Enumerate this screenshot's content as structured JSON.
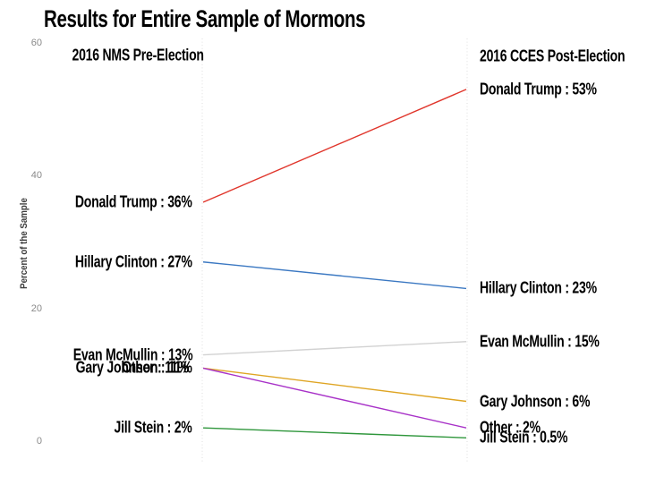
{
  "title": "Results for Entire Sample of Mormons",
  "y_axis": {
    "label": "Percent of the Sample",
    "ticks": [
      "60",
      "40",
      "20",
      "0"
    ],
    "tick_values": [
      60,
      40,
      20,
      0
    ]
  },
  "columns": {
    "left_header": "2016 NMS Pre-Election",
    "right_header": "2016 CCES Post-Election"
  },
  "colors": {
    "axis_dotted_line": "#dedede",
    "tick_text": "#8a8a8a"
  },
  "chart_data": {
    "type": "line",
    "subtype": "slopegraph",
    "title": "Results for Entire Sample of Mormons",
    "xlabel": "",
    "ylabel": "Percent of the Sample",
    "ylim": [
      0,
      60
    ],
    "yticks": [
      0,
      20,
      40,
      60
    ],
    "grid": false,
    "legend_position": "none",
    "categories": [
      "2016 NMS Pre-Election",
      "2016 CCES Post-Election"
    ],
    "series": [
      {
        "name": "Donald Trump",
        "values": [
          36,
          53
        ],
        "color": "#e0352b",
        "label_left": "Donald Trump : 36%",
        "label_right": "Donald Trump : 53%"
      },
      {
        "name": "Hillary Clinton",
        "values": [
          27,
          23
        ],
        "color": "#3b78c2",
        "label_left": "Hillary Clinton : 27%",
        "label_right": "Hillary Clinton : 23%"
      },
      {
        "name": "Evan McMullin",
        "values": [
          13,
          15
        ],
        "color": "#d2d2d2",
        "label_left": "Evan McMullin : 13%",
        "label_right": "Evan McMullin : 15%"
      },
      {
        "name": "Gary Johnson",
        "values": [
          11,
          6
        ],
        "color": "#dfa524",
        "label_left": "Gary Johnson : 11%",
        "label_right": "Gary Johnson : 6%"
      },
      {
        "name": "Other",
        "values": [
          11,
          2
        ],
        "color": "#a832c8",
        "label_left": "Other : 11%",
        "label_right": "Other : 2%"
      },
      {
        "name": "Jill Stein",
        "values": [
          2,
          0.5
        ],
        "color": "#2e963b",
        "label_left": "Jill Stein : 2%",
        "label_right": "Jill Stein : 0.5%"
      }
    ]
  }
}
